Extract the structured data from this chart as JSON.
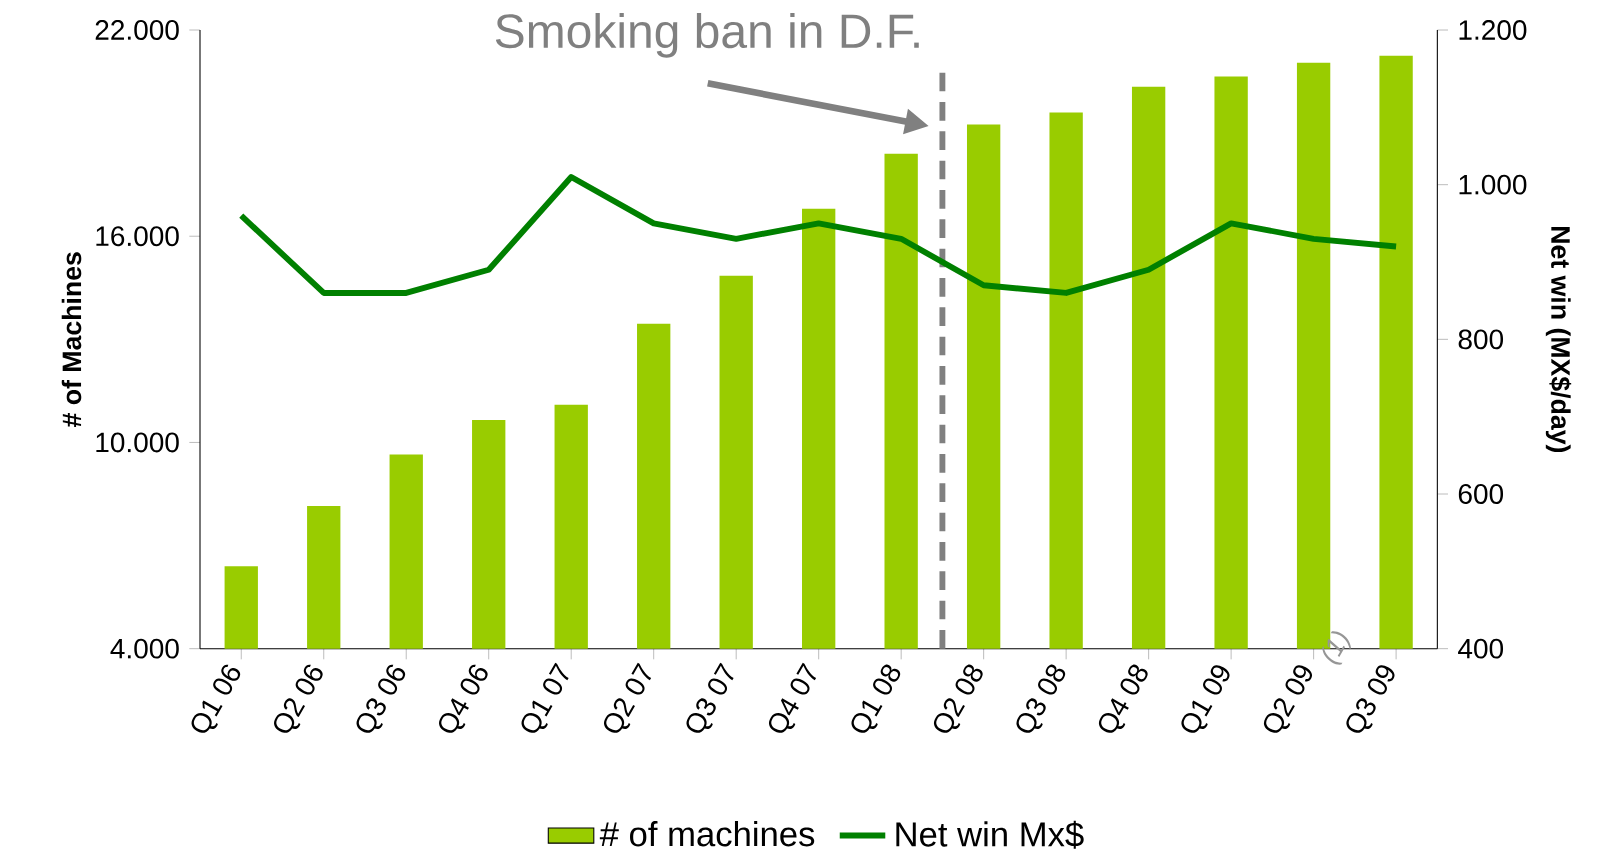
{
  "chart_data": {
    "type": "bar",
    "categories": [
      "Q1 06",
      "Q2 06",
      "Q3 06",
      "Q4 06",
      "Q1 07",
      "Q2 07",
      "Q3 07",
      "Q4 07",
      "Q1 08",
      "Q2 08",
      "Q3 08",
      "Q4 08",
      "Q1 09",
      "Q2 09",
      "Q3 09"
    ],
    "series": [
      {
        "name": "# of machines",
        "color": "#99cc00",
        "values": [
          6400,
          8150,
          9650,
          10650,
          11100,
          13450,
          14850,
          16800,
          18400,
          19250,
          19600,
          20350,
          20650,
          21050,
          21250
        ]
      },
      {
        "name": "Net win Mx$",
        "type": "line",
        "axis": "y2",
        "color": "#008000",
        "values": [
          960,
          860,
          860,
          890,
          1010,
          950,
          930,
          950,
          930,
          870,
          860,
          890,
          950,
          930,
          920
        ]
      }
    ],
    "ylabel": "# of Machines",
    "y2label": "Net win (MX$/day)",
    "ylim": [
      4000,
      22000
    ],
    "yticks": [
      {
        "value": 4000,
        "label": "4.000"
      },
      {
        "value": 10000,
        "label": "10.000"
      },
      {
        "value": 16000,
        "label": "16.000"
      },
      {
        "value": 22000,
        "label": "22.000"
      }
    ],
    "y2lim": [
      400,
      1200
    ],
    "y2ticks": [
      400,
      600,
      800,
      {
        "value": 1000,
        "label": "1.000"
      },
      {
        "value": 1200,
        "label": "1.200"
      }
    ],
    "annotations": [
      "Smoking ban in D.F.",
      "(1)"
    ],
    "legend": "bottom"
  }
}
